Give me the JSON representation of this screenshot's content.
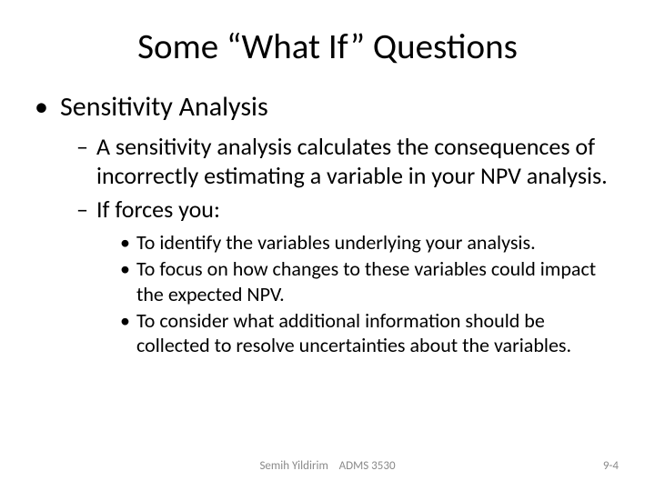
{
  "title": "Some “What If” Questions",
  "heading": "Sensitivity Analysis",
  "sub1": "A sensitivity analysis calculates the consequences of incorrectly estimating a variable in your NPV analysis.",
  "sub2": "If forces you:",
  "points": {
    "p1": "To identify the variables underlying your analysis.",
    "p2": "To focus on how changes to these variables could impact the expected NPV.",
    "p3": "To consider what additional information should be collected to resolve uncertainties about the variables."
  },
  "footer": {
    "author": "Semih Yildirim",
    "course": "ADMS 3530",
    "pagenum": "9-4"
  }
}
